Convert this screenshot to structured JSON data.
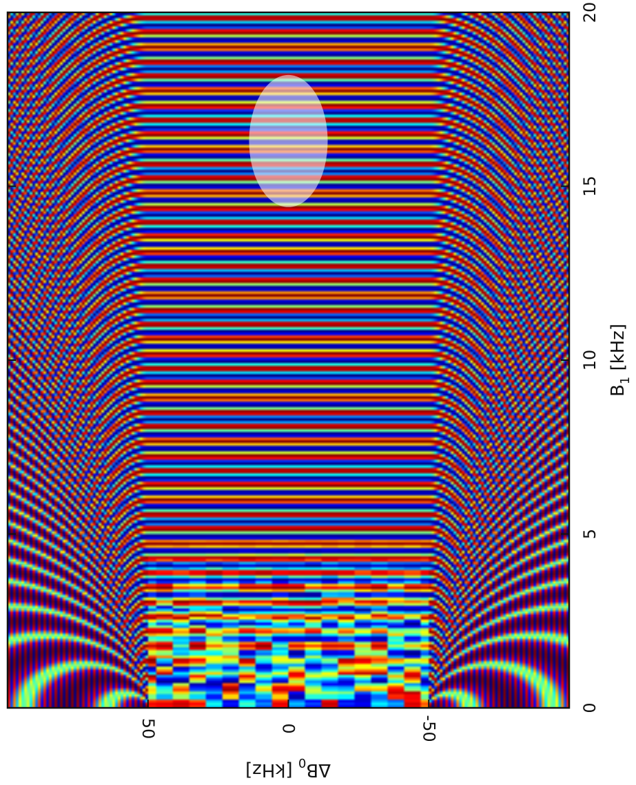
{
  "chart_data": {
    "type": "heatmap",
    "title": "",
    "colormap": "jet",
    "colors": [
      "#00007f",
      "#0000ff",
      "#00ffff",
      "#ffff00",
      "#ff0000",
      "#7f0000"
    ],
    "grid": false,
    "legend": "none",
    "x_axis": {
      "label_main": "B",
      "label_sub": "1",
      "label_rest": " [kHz]",
      "range": [
        0,
        20
      ],
      "ticks": [
        0,
        5,
        10,
        15,
        20
      ],
      "tick_labels": [
        "0",
        "5",
        "10",
        "15",
        "20"
      ]
    },
    "y_axis": {
      "label_main": "ΔB",
      "label_sub": "0",
      "label_rest": " [kHz]",
      "range": [
        -100,
        100
      ],
      "ticks": [
        50,
        0,
        -50
      ],
      "tick_labels": [
        "50",
        "0",
        "-50"
      ]
    },
    "regions": {
      "flat_band_dB0": [
        -50,
        50
      ],
      "noisy_band_B1": [
        0,
        5
      ]
    },
    "fringe_period_B1": 0.42,
    "highlight": {
      "shape": "ellipse",
      "center_B1": 16.3,
      "center_dB0": 0,
      "radius_B1": 1.9,
      "radius_dB0": 14,
      "fill": "#ffffff",
      "opacity": 0.55
    }
  }
}
